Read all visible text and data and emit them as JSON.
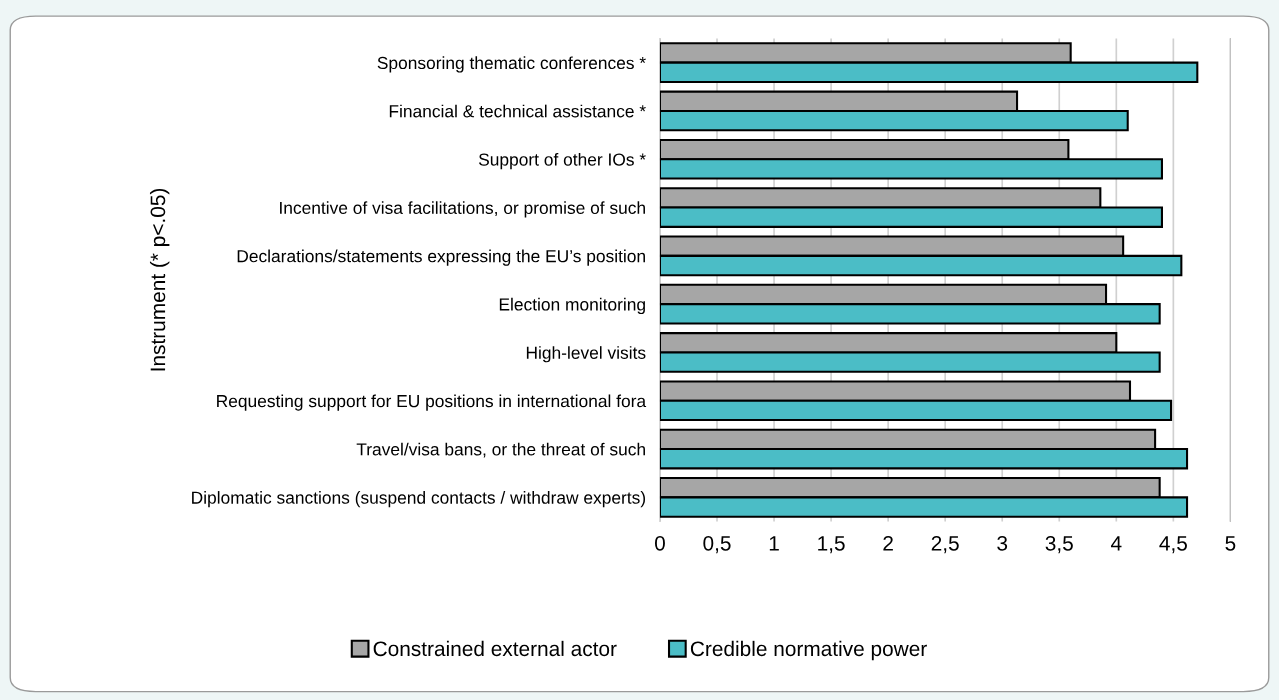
{
  "chart_data": {
    "type": "bar",
    "orientation": "horizontal",
    "ylabel": "Instrument (* p<.05)",
    "categories": [
      "Sponsoring thematic conferences *",
      "Financial & technical assistance *",
      "Support of other IOs *",
      "Incentive of visa facilitations, or promise of such",
      "Declarations/statements expressing the EU’s position",
      "Election monitoring",
      "High-level visits",
      "Requesting support for EU positions in international fora",
      "Travel/visa bans, or the threat of such",
      "Diplomatic sanctions (suspend contacts / withdraw experts)"
    ],
    "series": [
      {
        "name": "Constrained external actor",
        "color": "#a6a6a6",
        "values": [
          3.6,
          3.13,
          3.58,
          3.86,
          4.06,
          3.91,
          4.0,
          4.12,
          4.34,
          4.38
        ]
      },
      {
        "name": "Credible normative power",
        "color": "#4bbdc6",
        "values": [
          4.71,
          4.1,
          4.4,
          4.4,
          4.57,
          4.38,
          4.38,
          4.48,
          4.62,
          4.62
        ]
      }
    ],
    "xlim": [
      0,
      5
    ],
    "xticks": [
      {
        "value": 0,
        "label": "0"
      },
      {
        "value": 0.5,
        "label": "0,5"
      },
      {
        "value": 1,
        "label": "1"
      },
      {
        "value": 1.5,
        "label": "1,5"
      },
      {
        "value": 2,
        "label": "2"
      },
      {
        "value": 2.5,
        "label": "2,5"
      },
      {
        "value": 3,
        "label": "3"
      },
      {
        "value": 3.5,
        "label": "3,5"
      },
      {
        "value": 4,
        "label": "4"
      },
      {
        "value": 4.5,
        "label": "4,5"
      },
      {
        "value": 5,
        "label": "5"
      }
    ],
    "grid": "x",
    "legend": "bottom"
  }
}
